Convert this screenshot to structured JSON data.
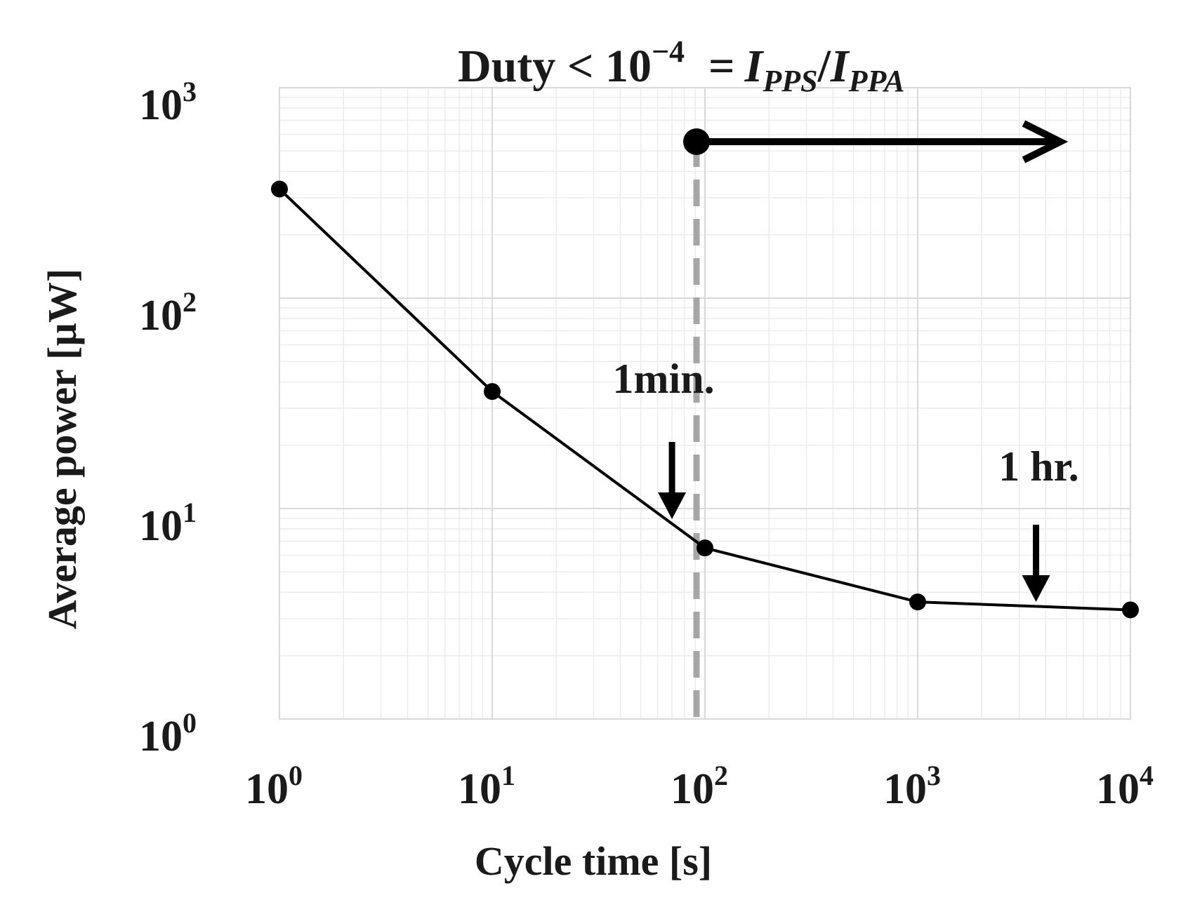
{
  "chart_data": {
    "type": "line",
    "x_scale": "log",
    "y_scale": "log",
    "xlabel": "Cycle time [s]",
    "ylabel": "Average power [µW]",
    "xlim": [
      1,
      10000
    ],
    "ylim": [
      1,
      1000
    ],
    "x_ticks": [
      {
        "base": "10",
        "exp": "0"
      },
      {
        "base": "10",
        "exp": "1"
      },
      {
        "base": "10",
        "exp": "2"
      },
      {
        "base": "10",
        "exp": "3"
      },
      {
        "base": "10",
        "exp": "4"
      }
    ],
    "y_ticks": [
      {
        "base": "10",
        "exp": "0"
      },
      {
        "base": "10",
        "exp": "1"
      },
      {
        "base": "10",
        "exp": "2"
      },
      {
        "base": "10",
        "exp": "3"
      }
    ],
    "grid": true,
    "series": [
      {
        "x": [
          1,
          10,
          100,
          1000,
          10000
        ],
        "y": [
          330,
          36,
          6.5,
          3.6,
          3.3
        ],
        "color": "#000000"
      }
    ],
    "threshold": {
      "x": 100,
      "color": "#a6a6a6"
    },
    "duty_annotation": {
      "prefix": "Duty < 10",
      "exponent": "−4",
      "equals": "=",
      "numerator": "I",
      "numerator_sub": "PPS",
      "slash": "/",
      "denominator": "I",
      "denominator_sub": "PPA"
    },
    "annotations": [
      {
        "text": "1min.",
        "x": 70
      },
      {
        "text": "1 hr.",
        "x": 3600
      }
    ]
  }
}
